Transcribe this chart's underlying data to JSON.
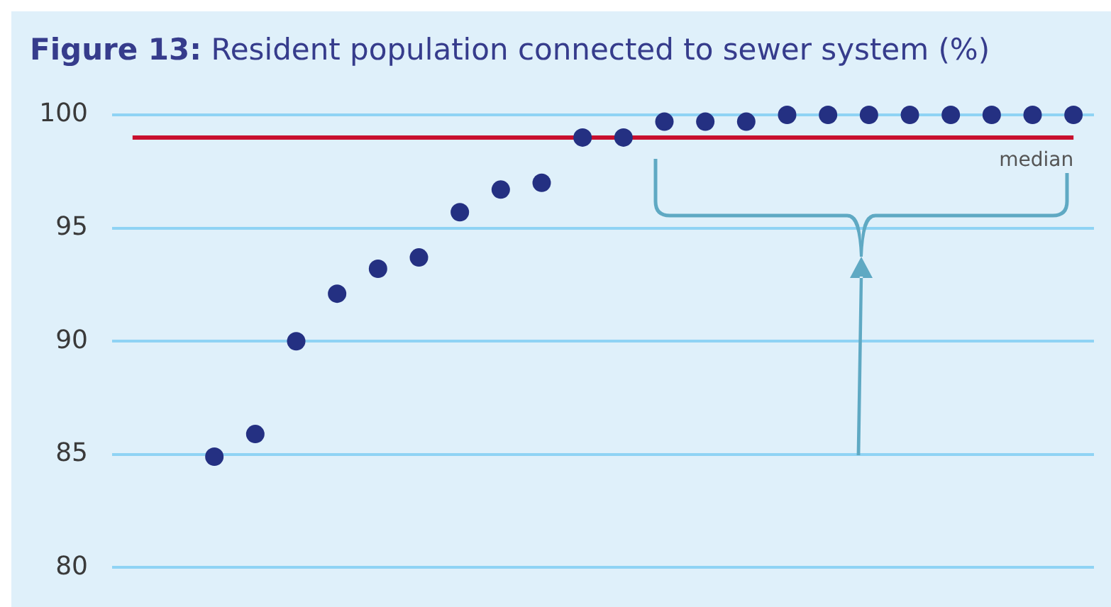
{
  "chart_data": {
    "type": "scatter",
    "title": "Figure 13: Resident population connected to sewer system (%)",
    "categories": [
      null,
      null,
      null,
      null,
      null,
      null,
      null,
      null,
      null,
      null,
      null,
      null,
      null,
      null,
      null,
      null,
      null,
      null,
      null,
      null,
      null,
      null,
      null,
      null
    ],
    "values": [
      null,
      null,
      84.9,
      85.9,
      90.0,
      92.1,
      93.2,
      93.7,
      95.7,
      96.7,
      97.0,
      99.0,
      99.0,
      99.7,
      99.7,
      99.7,
      100,
      100,
      100,
      100,
      100,
      100,
      100,
      100
    ],
    "color": "#243082",
    "marker": "circle",
    "ylim": [
      80,
      100
    ],
    "yticks": [
      80,
      85,
      90,
      95,
      100
    ],
    "grid": "y",
    "tick_labels": "y",
    "ref_lines": [
      {
        "axis": "y",
        "value": 99,
        "label": "median",
        "color": "#c8102e"
      }
    ]
  }
}
